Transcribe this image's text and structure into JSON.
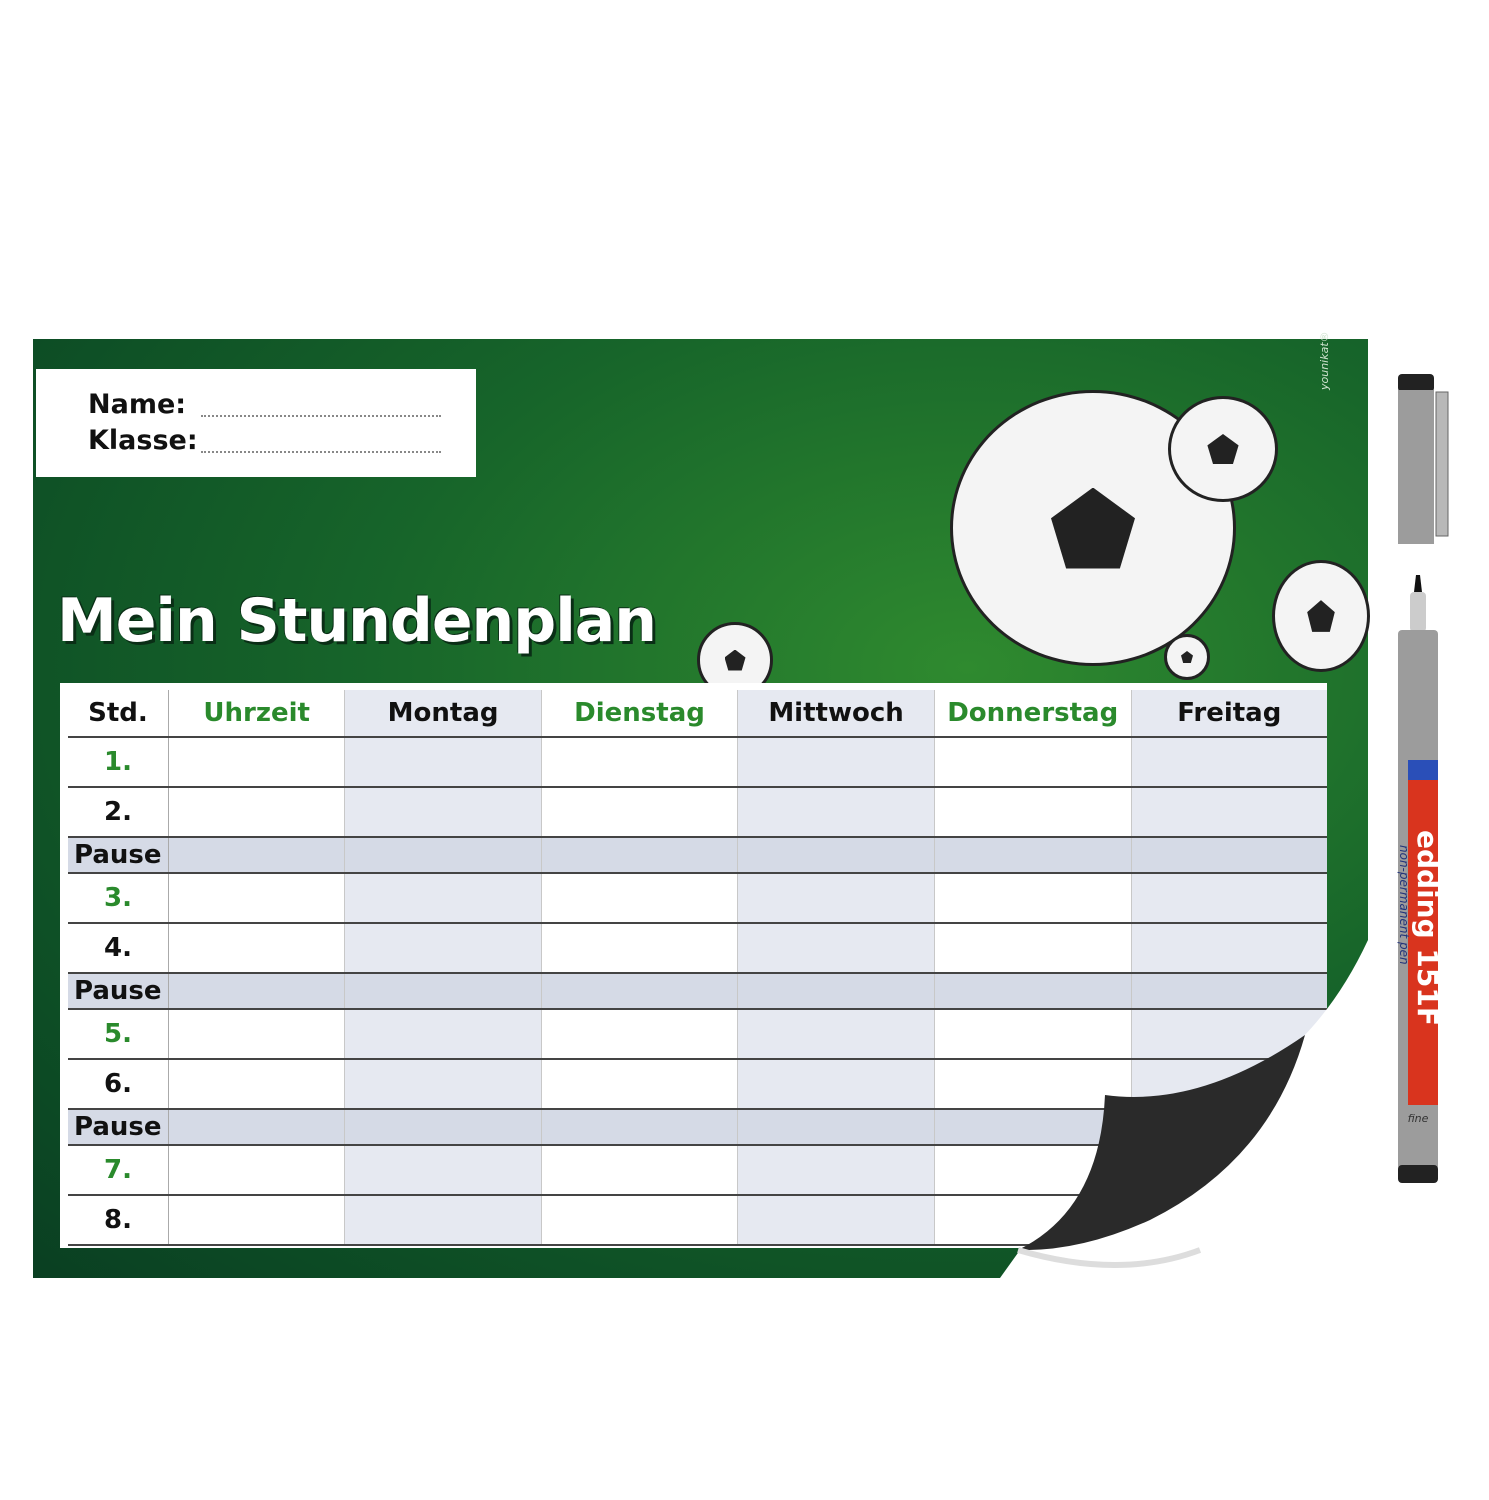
{
  "sheet": {
    "name_label": "Name:",
    "class_label": "Klasse:",
    "title": "Mein Stundenplan",
    "signature": "younikat®",
    "colors": {
      "board_green": "#17652a",
      "accent_green": "#2a8a2c",
      "shade": "#e6e9f1",
      "pause": "#d5dae6"
    }
  },
  "table": {
    "headers": [
      "Std.",
      "Uhrzeit",
      "Montag",
      "Dienstag",
      "Mittwoch",
      "Donnerstag",
      "Freitag"
    ],
    "rows": [
      {
        "label": "1.",
        "type": "lesson"
      },
      {
        "label": "2.",
        "type": "lesson"
      },
      {
        "label": "Pause",
        "type": "pause"
      },
      {
        "label": "3.",
        "type": "lesson"
      },
      {
        "label": "4.",
        "type": "lesson"
      },
      {
        "label": "Pause",
        "type": "pause"
      },
      {
        "label": "5.",
        "type": "lesson"
      },
      {
        "label": "6.",
        "type": "lesson"
      },
      {
        "label": "Pause",
        "type": "pause"
      },
      {
        "label": "7.",
        "type": "lesson"
      },
      {
        "label": "8.",
        "type": "lesson"
      }
    ]
  },
  "pen": {
    "brand": "edding",
    "model": "151F",
    "type": "non-permanent pen",
    "tip": "fine"
  }
}
